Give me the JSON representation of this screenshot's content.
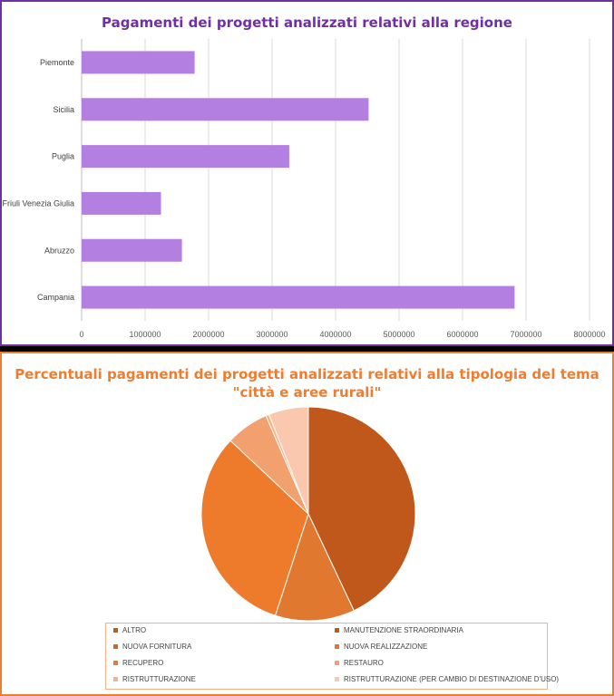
{
  "colors": {
    "bar": "#b37fe0",
    "bar_title": "#7030a0",
    "bar_border": "#7030a0",
    "pie_title": "#ed7d31",
    "pie_border": "#ed7d31"
  },
  "chart_data": [
    {
      "type": "bar",
      "orientation": "horizontal",
      "title": "Pagamenti dei progetti analizzati relativi alla regione",
      "categories": [
        "Piemonte",
        "Sicilia",
        "Puglia",
        "Friuli Venezia Giulia",
        "Abruzzo",
        "Campania"
      ],
      "values": [
        1780000,
        4520000,
        3270000,
        1250000,
        1580000,
        6820000
      ],
      "xlim": [
        0,
        8000000
      ],
      "xticks": [
        "0",
        "1000000",
        "2000000",
        "3000000",
        "4000000",
        "5000000",
        "6000000",
        "7000000",
        "8000000"
      ],
      "grid": true,
      "legend": "none"
    },
    {
      "type": "pie",
      "title_line1": "Percentuali pagamenti dei progetti analizzati relativi alla tipologia del tema",
      "title_line2": "\"città e aree rurali\"",
      "slices": [
        {
          "label": "ALTRO",
          "value": 0.0,
          "color": "#c55a11"
        },
        {
          "label": "MANUTENZIONE STRAORDINARIA",
          "value": 43.0,
          "color": "#c0581b"
        },
        {
          "label": "NUOVA FORNITURA",
          "value": 0.0,
          "color": "#d2661e"
        },
        {
          "label": "NUOVA REALIZZAZIONE",
          "value": 12.0,
          "color": "#e0782f"
        },
        {
          "label": "RECUPERO",
          "value": 32.0,
          "color": "#ee7b2c"
        },
        {
          "label": "RESTAURO",
          "value": 6.5,
          "color": "#f2a06e"
        },
        {
          "label": "RISTRUTTURAZIONE",
          "value": 0.5,
          "color": "#f6b288"
        },
        {
          "label": "RISTRUTTURAZIONE (PER CAMBIO DI DESTINAZIONE D'USO)",
          "value": 6.0,
          "color": "#f9c8ae"
        }
      ],
      "legend": "bottom"
    }
  ]
}
